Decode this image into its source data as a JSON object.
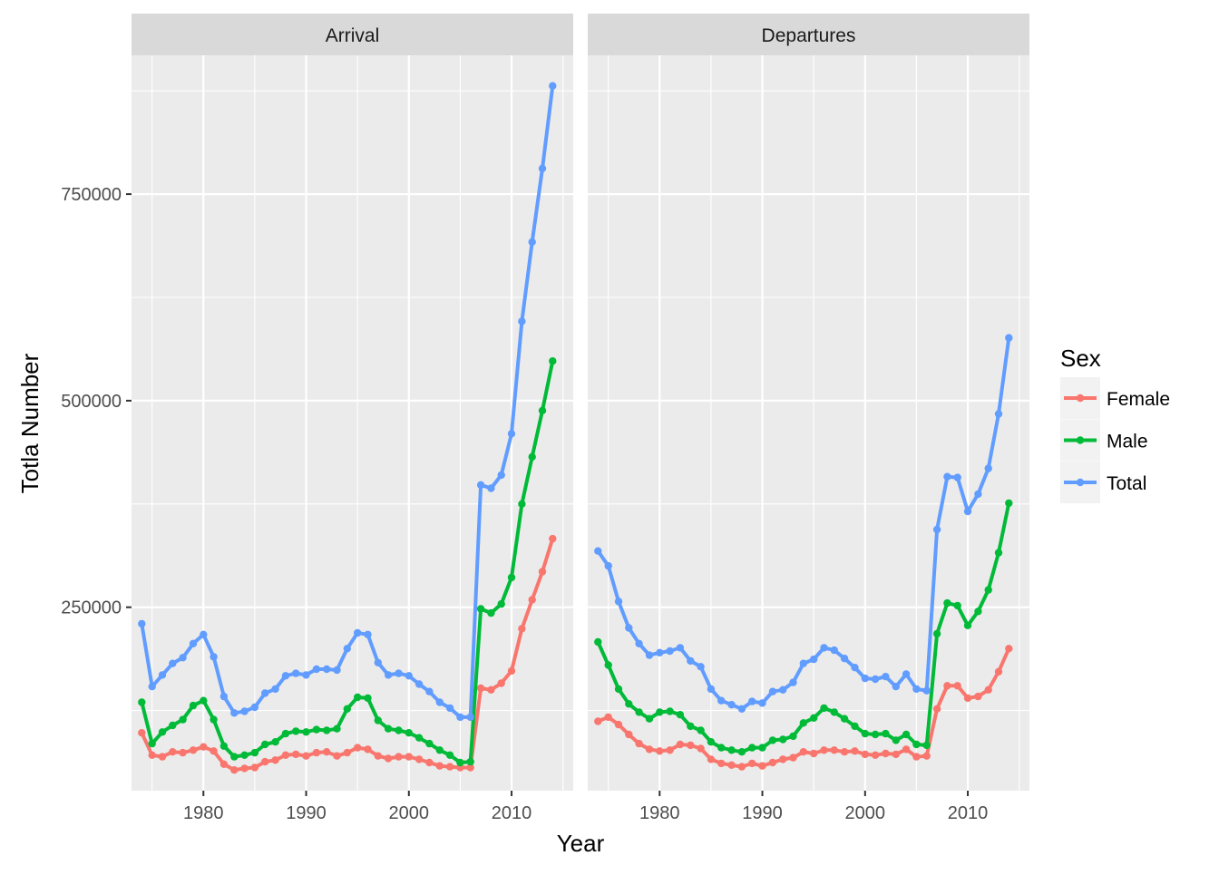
{
  "chart_data": {
    "type": "line",
    "xlabel": "Year",
    "ylabel": "Totla Number",
    "xlim": [
      1973,
      2016
    ],
    "ylim": [
      28000,
      918000
    ],
    "x_ticks": [
      1980,
      1990,
      2000,
      2010
    ],
    "y_ticks": [
      250000,
      500000,
      750000
    ],
    "x_tick_labels": [
      "1980",
      "1990",
      "2000",
      "2010"
    ],
    "y_tick_labels": [
      "250000",
      "500000",
      "750000"
    ],
    "grid": true,
    "legend": {
      "title": "Sex",
      "position": "right",
      "entries": [
        "Female",
        "Male",
        "Total"
      ]
    },
    "colors": {
      "Female": "#F8766D",
      "Male": "#00BA38",
      "Total": "#619CFF"
    },
    "x": [
      1974,
      1975,
      1976,
      1977,
      1978,
      1979,
      1980,
      1981,
      1982,
      1983,
      1984,
      1985,
      1986,
      1987,
      1988,
      1989,
      1990,
      1991,
      1992,
      1993,
      1994,
      1995,
      1996,
      1997,
      1998,
      1999,
      2000,
      2001,
      2002,
      2003,
      2004,
      2005,
      2006,
      2007,
      2008,
      2009,
      2010,
      2011,
      2012,
      2013,
      2014
    ],
    "panels": [
      {
        "title": "Arrival",
        "series": [
          {
            "name": "Female",
            "values": [
              98000,
              71000,
              69000,
              75000,
              74000,
              77000,
              81000,
              76000,
              60000,
              53000,
              55000,
              56000,
              63000,
              65000,
              71000,
              72000,
              70000,
              74000,
              75000,
              70000,
              74000,
              80000,
              78000,
              70000,
              67000,
              69000,
              69000,
              66000,
              62000,
              58000,
              57000,
              56000,
              56000,
              152000,
              150000,
              158000,
              173000,
              224000,
              259000,
              293000,
              333000
            ]
          },
          {
            "name": "Male",
            "values": [
              135000,
              85000,
              99000,
              107000,
              114000,
              131000,
              137000,
              114000,
              82000,
              69000,
              71000,
              74000,
              84000,
              87000,
              97000,
              100000,
              99000,
              102000,
              101000,
              103000,
              127000,
              141000,
              140000,
              113000,
              103000,
              101000,
              98000,
              92000,
              85000,
              77000,
              71000,
              62000,
              63000,
              248000,
              243000,
              254000,
              286000,
              375000,
              432000,
              488000,
              548000
            ]
          },
          {
            "name": "Total",
            "values": [
              230000,
              154000,
              168000,
              182000,
              189000,
              206000,
              217000,
              190000,
              142000,
              122000,
              124000,
              129000,
              146000,
              151000,
              167000,
              170000,
              168000,
              175000,
              175000,
              174000,
              200000,
              219000,
              217000,
              183000,
              168000,
              170000,
              167000,
              157000,
              148000,
              135000,
              128000,
              117000,
              117000,
              398000,
              394000,
              410000,
              460000,
              596000,
              692000,
              781000,
              881000
            ]
          }
        ]
      },
      {
        "title": "Departures",
        "series": [
          {
            "name": "Female",
            "values": [
              112000,
              117000,
              108000,
              96000,
              85000,
              78000,
              76000,
              77000,
              84000,
              83000,
              79000,
              66000,
              61000,
              59000,
              57000,
              61000,
              58000,
              62000,
              66000,
              68000,
              75000,
              73000,
              77000,
              77000,
              75000,
              76000,
              72000,
              71000,
              73000,
              72000,
              78000,
              69000,
              70000,
              127000,
              155000,
              155000,
              140000,
              142000,
              150000,
              172000,
              200000
            ]
          },
          {
            "name": "Male",
            "values": [
              208000,
              180000,
              151000,
              133000,
              123000,
              115000,
              123000,
              124000,
              120000,
              106000,
              101000,
              87000,
              80000,
              77000,
              75000,
              80000,
              80000,
              89000,
              90000,
              94000,
              110000,
              116000,
              128000,
              123000,
              115000,
              106000,
              97000,
              96000,
              97000,
              89000,
              96000,
              84000,
              83000,
              218000,
              255000,
              252000,
              228000,
              245000,
              271000,
              316000,
              376000
            ]
          },
          {
            "name": "Total",
            "values": [
              318000,
              300000,
              257000,
              225000,
              206000,
              192000,
              195000,
              197000,
              201000,
              185000,
              178000,
              151000,
              137000,
              132000,
              127000,
              136000,
              134000,
              148000,
              150000,
              159000,
              182000,
              187000,
              201000,
              198000,
              188000,
              177000,
              164000,
              163000,
              166000,
              154000,
              169000,
              151000,
              149000,
              344000,
              408000,
              407000,
              366000,
              387000,
              418000,
              484000,
              576000
            ]
          }
        ]
      }
    ]
  }
}
